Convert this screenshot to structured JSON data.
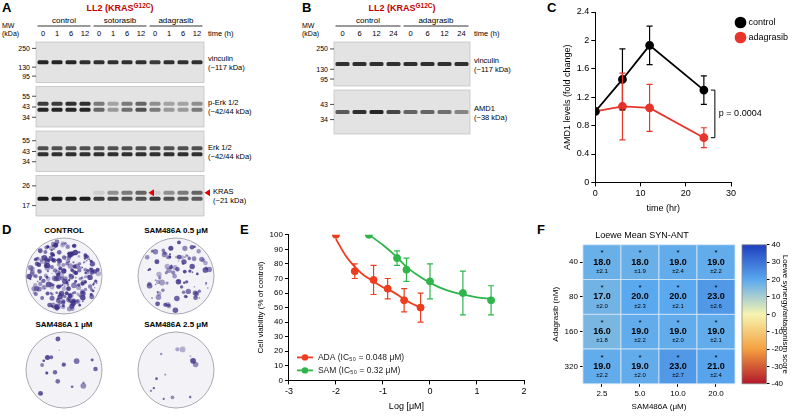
{
  "blots": [
    {
      "letter": "A",
      "title": [
        "LL2 (KRAS",
        "G12C",
        ")"
      ],
      "mw_label": [
        "MW",
        "(kDa)"
      ],
      "time_label": "time (h)",
      "groups": [
        {
          "name": "control",
          "times": [
            0,
            1,
            6,
            12
          ]
        },
        {
          "name": "sotorasib",
          "times": [
            0,
            1,
            6,
            12
          ]
        },
        {
          "name": "adagrasib",
          "times": [
            0,
            1,
            6,
            12
          ]
        }
      ],
      "panels": [
        {
          "label": [
            "vinculin",
            "(~117 kDa)"
          ],
          "markers": [
            250,
            130,
            95
          ],
          "bands": [
            {
              "intensity": [
                0.9,
                0.9,
                0.9,
                0.85,
                0.85,
                0.85,
                0.85,
                0.85,
                0.8,
                0.85,
                0.85,
                0.85
              ]
            }
          ]
        },
        {
          "label": [
            "p-Erk 1/2",
            "(~42/44 kDa)"
          ],
          "markers": [
            55,
            43,
            34
          ],
          "bands": [
            {
              "intensity": [
                0.8,
                0.8,
                0.85,
                0.85,
                0.5,
                0.3,
                0.5,
                0.6,
                0.4,
                0.3,
                0.3,
                0.4
              ]
            },
            {
              "intensity": [
                0.9,
                0.9,
                0.9,
                0.9,
                0.6,
                0.35,
                0.55,
                0.7,
                0.5,
                0.35,
                0.35,
                0.5
              ]
            }
          ]
        },
        {
          "label": [
            "Erk 1/2",
            "(~42/44 kDa)"
          ],
          "markers": [
            55,
            43,
            34
          ],
          "bands": [
            {
              "intensity": [
                0.7,
                0.7,
                0.7,
                0.7,
                0.7,
                0.7,
                0.7,
                0.7,
                0.7,
                0.7,
                0.7,
                0.7
              ]
            },
            {
              "intensity": [
                0.85,
                0.85,
                0.85,
                0.85,
                0.85,
                0.85,
                0.85,
                0.85,
                0.85,
                0.85,
                0.85,
                0.85
              ]
            }
          ]
        },
        {
          "label": [
            "KRAS",
            "(~21 kDa)"
          ],
          "markers": [
            26,
            17
          ],
          "bands": [
            {
              "intensity": [
                0,
                0,
                0,
                0,
                0.1,
                0.4,
                0.5,
                0.6,
                0.1,
                0.4,
                0.5,
                0.6
              ],
              "arrowhead": true
            },
            {
              "intensity": [
                0.95,
                0.95,
                0.95,
                0.95,
                0.8,
                0.75,
                0.7,
                0.7,
                0.8,
                0.7,
                0.65,
                0.65
              ]
            }
          ]
        }
      ]
    },
    {
      "letter": "B",
      "title": [
        "LL2 (KRAS",
        "G12C",
        ")"
      ],
      "mw_label": [
        "MW",
        "(kDa)"
      ],
      "time_label": "time (h)",
      "groups": [
        {
          "name": "control",
          "times": [
            0,
            6,
            12,
            24
          ]
        },
        {
          "name": "adagrasib",
          "times": [
            0,
            6,
            12,
            24
          ]
        }
      ],
      "panels": [
        {
          "label": [
            "vinculin",
            "(~117 kDa)"
          ],
          "markers": [
            250,
            130,
            95
          ],
          "bands": [
            {
              "intensity": [
                0.85,
                0.85,
                0.85,
                0.85,
                0.85,
                0.85,
                0.85,
                0.85
              ]
            }
          ]
        },
        {
          "label": [
            "AMD1",
            "(~38 kDa)"
          ],
          "markers": [
            43,
            34
          ],
          "bands": [
            {
              "intensity": [
                0.65,
                0.85,
                0.9,
                0.75,
                0.6,
                0.6,
                0.55,
                0.45
              ]
            }
          ]
        }
      ]
    }
  ],
  "colonies": {
    "letter": "D",
    "wells": [
      {
        "label": "CONTROL",
        "coverage": 0.8
      },
      {
        "label": "SAM486A 0.5 μM",
        "coverage": 0.3
      },
      {
        "label": "SAM486A 1 μM",
        "coverage": 0.06
      },
      {
        "label": "SAM486A 2.5 μM",
        "coverage": 0.04
      }
    ]
  },
  "chart_data": [
    {
      "letter": "C",
      "type": "line",
      "x_label": "time (hr)",
      "y_label": "AMD1 levels (fold change)",
      "xlim": [
        0,
        30
      ],
      "xticks": [
        0,
        10,
        20,
        30
      ],
      "ylim": [
        0,
        2.4
      ],
      "yticks": [
        0,
        0.4,
        0.8,
        1.2,
        1.6,
        2,
        2.4
      ],
      "grid": false,
      "legend": "right",
      "marker": "circle",
      "series": [
        {
          "name": "control",
          "color": "#000000",
          "x": [
            0,
            6,
            12,
            24
          ],
          "values": [
            1,
            1.45,
            1.93,
            1.3
          ],
          "errors": [
            0,
            0.43,
            0.27,
            0.2
          ]
        },
        {
          "name": "adagrasib",
          "color": "#e8352b",
          "x": [
            0,
            6,
            12,
            24
          ],
          "values": [
            1,
            1.07,
            1.05,
            0.63
          ],
          "errors": [
            0,
            0.47,
            0.33,
            0.14
          ]
        }
      ],
      "annotation": {
        "text": "p = 0.0004",
        "x": 24
      }
    },
    {
      "letter": "E",
      "type": "scatter",
      "x_label": "Log [μM]",
      "y_label": "Cell viability (% of control)",
      "xlim": [
        -3,
        2
      ],
      "xticks": [
        -3,
        -2,
        -1,
        0,
        1,
        2
      ],
      "ylim": [
        0,
        100
      ],
      "yticks": [
        0,
        10,
        20,
        30,
        40,
        50,
        60,
        70,
        80,
        90,
        100
      ],
      "grid": false,
      "legend": "lower left",
      "marker": "circle",
      "series": [
        {
          "name": "ADA (IC₅₀ = 0.048 μM)",
          "color": "#f03c1e",
          "x": [
            -2,
            -1.6,
            -1.2,
            -0.9,
            -0.55,
            -0.2
          ],
          "values": [
            100,
            75,
            69,
            63,
            55,
            50
          ],
          "errors": [
            0,
            5,
            10,
            7,
            8,
            10
          ],
          "fit": {
            "x": [
              -2,
              -1.8,
              -1.6,
              -1.4,
              -1.2,
              -1,
              -0.8,
              -0.6,
              -0.4,
              -0.2
            ],
            "values": [
              97,
              86,
              78,
              72,
              68,
              64,
              61,
              57,
              53,
              50
            ]
          }
        },
        {
          "name": "SAM (IC₅₀ = 0.32 μM)",
          "color": "#2fb54a",
          "x": [
            -1.3,
            -0.7,
            -0.5,
            0,
            0.7,
            1.3
          ],
          "values": [
            100,
            84,
            76,
            68,
            60,
            55
          ],
          "errors": [
            0,
            5,
            8,
            12,
            15,
            10
          ],
          "fit": {
            "x": [
              -1.3,
              -1,
              -0.75,
              -0.5,
              -0.25,
              0,
              0.35,
              0.7,
              1,
              1.3
            ],
            "values": [
              100,
              93,
              86,
              78,
              72,
              67,
              62,
              59,
              57,
              56
            ]
          }
        }
      ]
    },
    {
      "letter": "F",
      "type": "heatmap",
      "title": "Loewe Mean SYN-ANT",
      "x_label": "SAM486A (μM)",
      "y_label": "Adagrasib (nM)",
      "x_categories": [
        "2.5",
        "5.0",
        "10.0",
        "20.0"
      ],
      "y_categories": [
        "40",
        "80",
        "160",
        "320"
      ],
      "cells": [
        [
          18,
          18,
          19,
          19
        ],
        [
          17,
          20,
          20,
          23
        ],
        [
          16,
          19,
          19,
          19
        ],
        [
          19,
          19,
          23,
          21
        ]
      ],
      "cell_labels": [
        [
          "18.0",
          "18.0",
          "19.0",
          "19.0"
        ],
        [
          "17.0",
          "20.0",
          "20.0",
          "23.0"
        ],
        [
          "16.0",
          "19.0",
          "19.0",
          "19.0"
        ],
        [
          "19.0",
          "19.0",
          "23.0",
          "21.0"
        ]
      ],
      "cell_mark": "*",
      "cell_errors": [
        [
          2.1,
          1.9,
          2.4,
          2.2
        ],
        [
          2.0,
          2.3,
          2.1,
          2.6
        ],
        [
          1.8,
          2.2,
          2.0,
          2.1
        ],
        [
          2.2,
          2.0,
          2.7,
          2.4
        ]
      ],
      "cell_error_labels": [
        [
          "±2.1",
          "±1.9",
          "±2.4",
          "±2.2"
        ],
        [
          "±2.0",
          "±2.3",
          "±2.1",
          "±2.6"
        ],
        [
          "±1.8",
          "±2.2",
          "±2.0",
          "±2.1"
        ],
        [
          "±2.2",
          "±2.0",
          "±2.7",
          "±2.4"
        ]
      ],
      "colorbar": {
        "label": "Loewe synergy/antagonism score",
        "range": [
          -40,
          40
        ],
        "ticks": [
          -40,
          -30,
          -20,
          -10,
          0,
          10,
          20,
          30,
          40
        ],
        "colors": [
          "#b2182b",
          "#f4a040",
          "#f7f4b0",
          "#5aa8ee",
          "#1f3fbf"
        ]
      }
    }
  ]
}
